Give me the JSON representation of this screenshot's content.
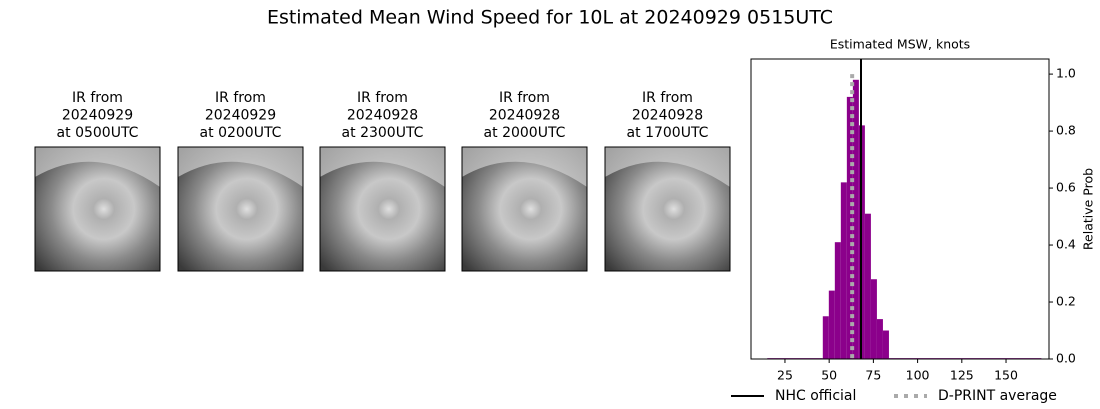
{
  "title": "Estimated Mean Wind Speed for 10L at 20240929 0515UTC",
  "panels": [
    {
      "lines": [
        "IR from",
        "20240929",
        "at 0500UTC"
      ]
    },
    {
      "lines": [
        "IR from",
        "20240929",
        "at 0200UTC"
      ]
    },
    {
      "lines": [
        "IR from",
        "20240928",
        "at 2300UTC"
      ]
    },
    {
      "lines": [
        "IR from",
        "20240928",
        "at 2000UTC"
      ]
    },
    {
      "lines": [
        "IR from",
        "20240928",
        "at 1700UTC"
      ]
    }
  ],
  "chart_data": {
    "type": "histogram",
    "title": "Estimated MSW, knots",
    "y_label": "Relative Prob",
    "bins": [
      15,
      46.4,
      49.8,
      53.2,
      56.6,
      60,
      63.4,
      66.8,
      70.2,
      73.6,
      77,
      80.4,
      83.8,
      170
    ],
    "counts": [
      0.003,
      0.15,
      0.24,
      0.41,
      0.62,
      0.92,
      0.98,
      0.82,
      0.51,
      0.28,
      0.14,
      0.1,
      0.003
    ],
    "color": "#8b008b",
    "xlim": [
      5.8,
      174.3
    ],
    "xticks": [
      25,
      50,
      75,
      100,
      125,
      150
    ],
    "ylim": [
      0,
      1.053
    ],
    "yticks": [
      {
        "value": 0,
        "label": "0.0"
      },
      0.2,
      0.4,
      0.6,
      0.8,
      {
        "value": 1,
        "label": "1.0"
      }
    ],
    "y_axis_side": "right",
    "lines": [
      {
        "name": "NHC official",
        "value": 68,
        "color": "#000000",
        "style": "solid"
      },
      {
        "name": "D-PRINT average",
        "value": 63,
        "color": "#aaaaaa",
        "style": "dotted"
      }
    ]
  }
}
